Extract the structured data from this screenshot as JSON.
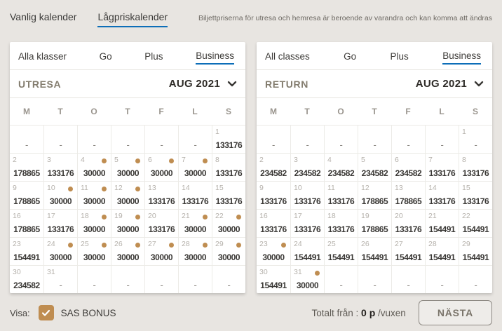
{
  "page": {
    "tabs": [
      {
        "label": "Vanlig kalender",
        "active": false
      },
      {
        "label": "Lågpriskalender",
        "active": true
      }
    ],
    "notice": "Biljettpriserna för utresa och hemresa är beroende av varandra och kan komma att ändras"
  },
  "colors": {
    "accent_blue": "#0d6eb8",
    "bonus_gold": "#bf8d51",
    "page_background": "#e8e5e1",
    "card_background": "#ffffff"
  },
  "calendars": [
    {
      "direction_label": "UTRESA",
      "month_label": "AUG 2021",
      "class_tabs": [
        {
          "label": "Alla klasser",
          "active": false
        },
        {
          "label": "Go",
          "active": false
        },
        {
          "label": "Plus",
          "active": false
        },
        {
          "label": "Business",
          "active": true
        }
      ],
      "weekdays": [
        "M",
        "T",
        "O",
        "T",
        "F",
        "L",
        "S"
      ],
      "cells": [
        {
          "d": "",
          "p": "-"
        },
        {
          "d": "",
          "p": "-"
        },
        {
          "d": "",
          "p": "-"
        },
        {
          "d": "",
          "p": "-"
        },
        {
          "d": "",
          "p": "-"
        },
        {
          "d": "",
          "p": "-"
        },
        {
          "d": "1",
          "p": "133176"
        },
        {
          "d": "2",
          "p": "178865"
        },
        {
          "d": "3",
          "p": "133176"
        },
        {
          "d": "4",
          "p": "30000",
          "dot": true
        },
        {
          "d": "5",
          "p": "30000",
          "dot": true
        },
        {
          "d": "6",
          "p": "30000",
          "dot": true
        },
        {
          "d": "7",
          "p": "30000",
          "dot": true
        },
        {
          "d": "8",
          "p": "133176"
        },
        {
          "d": "9",
          "p": "178865"
        },
        {
          "d": "10",
          "p": "30000",
          "dot": true
        },
        {
          "d": "11",
          "p": "30000",
          "dot": true
        },
        {
          "d": "12",
          "p": "30000",
          "dot": true
        },
        {
          "d": "13",
          "p": "133176"
        },
        {
          "d": "14",
          "p": "133176"
        },
        {
          "d": "15",
          "p": "133176"
        },
        {
          "d": "16",
          "p": "178865"
        },
        {
          "d": "17",
          "p": "133176"
        },
        {
          "d": "18",
          "p": "30000",
          "dot": true
        },
        {
          "d": "19",
          "p": "30000",
          "dot": true
        },
        {
          "d": "20",
          "p": "133176"
        },
        {
          "d": "21",
          "p": "30000",
          "dot": true
        },
        {
          "d": "22",
          "p": "30000",
          "dot": true
        },
        {
          "d": "23",
          "p": "154491"
        },
        {
          "d": "24",
          "p": "30000",
          "dot": true
        },
        {
          "d": "25",
          "p": "30000",
          "dot": true
        },
        {
          "d": "26",
          "p": "30000",
          "dot": true
        },
        {
          "d": "27",
          "p": "30000",
          "dot": true
        },
        {
          "d": "28",
          "p": "30000",
          "dot": true
        },
        {
          "d": "29",
          "p": "30000",
          "dot": true
        },
        {
          "d": "30",
          "p": "234582"
        },
        {
          "d": "31",
          "p": "-"
        },
        {
          "d": "",
          "p": "-"
        },
        {
          "d": "",
          "p": "-"
        },
        {
          "d": "",
          "p": "-"
        },
        {
          "d": "",
          "p": "-"
        },
        {
          "d": "",
          "p": "-"
        }
      ]
    },
    {
      "direction_label": "RETURN",
      "month_label": "AUG 2021",
      "class_tabs": [
        {
          "label": "All classes",
          "active": false
        },
        {
          "label": "Go",
          "active": false
        },
        {
          "label": "Plus",
          "active": false
        },
        {
          "label": "Business",
          "active": true
        }
      ],
      "weekdays": [
        "M",
        "T",
        "O",
        "T",
        "F",
        "L",
        "S"
      ],
      "cells": [
        {
          "d": "",
          "p": "-"
        },
        {
          "d": "",
          "p": "-"
        },
        {
          "d": "",
          "p": "-"
        },
        {
          "d": "",
          "p": "-"
        },
        {
          "d": "",
          "p": "-"
        },
        {
          "d": "",
          "p": "-"
        },
        {
          "d": "1",
          "p": "-"
        },
        {
          "d": "2",
          "p": "234582"
        },
        {
          "d": "3",
          "p": "234582"
        },
        {
          "d": "4",
          "p": "234582"
        },
        {
          "d": "5",
          "p": "234582"
        },
        {
          "d": "6",
          "p": "234582"
        },
        {
          "d": "7",
          "p": "133176"
        },
        {
          "d": "8",
          "p": "133176"
        },
        {
          "d": "9",
          "p": "133176"
        },
        {
          "d": "10",
          "p": "133176"
        },
        {
          "d": "11",
          "p": "133176"
        },
        {
          "d": "12",
          "p": "178865"
        },
        {
          "d": "13",
          "p": "178865"
        },
        {
          "d": "14",
          "p": "133176"
        },
        {
          "d": "15",
          "p": "133176"
        },
        {
          "d": "16",
          "p": "133176"
        },
        {
          "d": "17",
          "p": "133176"
        },
        {
          "d": "18",
          "p": "133176"
        },
        {
          "d": "19",
          "p": "178865"
        },
        {
          "d": "20",
          "p": "133176"
        },
        {
          "d": "21",
          "p": "154491"
        },
        {
          "d": "22",
          "p": "154491"
        },
        {
          "d": "23",
          "p": "30000",
          "dot": true
        },
        {
          "d": "24",
          "p": "154491"
        },
        {
          "d": "25",
          "p": "154491"
        },
        {
          "d": "26",
          "p": "154491"
        },
        {
          "d": "27",
          "p": "154491"
        },
        {
          "d": "28",
          "p": "154491"
        },
        {
          "d": "29",
          "p": "154491"
        },
        {
          "d": "30",
          "p": "154491"
        },
        {
          "d": "31",
          "p": "30000",
          "dot": true
        },
        {
          "d": "",
          "p": "-"
        },
        {
          "d": "",
          "p": "-"
        },
        {
          "d": "",
          "p": "-"
        },
        {
          "d": "",
          "p": "-"
        },
        {
          "d": "",
          "p": "-"
        }
      ]
    }
  ],
  "footer": {
    "show_label": "Visa:",
    "bonus_label": "SAS BONUS",
    "bonus_checked": true,
    "total_label": "Totalt från :",
    "total_value": "0 p",
    "total_suffix": "/vuxen",
    "next_button_label": "NÄSTA"
  }
}
